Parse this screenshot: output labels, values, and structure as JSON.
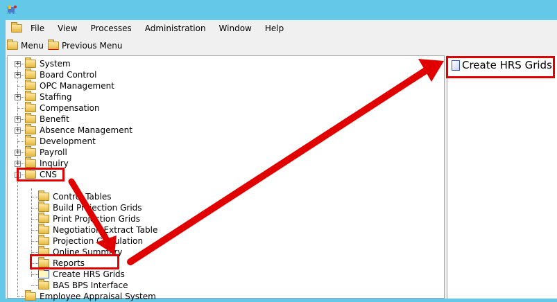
{
  "menubar": {
    "items": [
      "File",
      "View",
      "Processes",
      "Administration",
      "Window",
      "Help"
    ]
  },
  "toolbar": {
    "menu": "Menu",
    "previous_menu": "Previous Menu"
  },
  "tree": {
    "top": [
      {
        "label": "System",
        "expander": "+"
      },
      {
        "label": "Board Control",
        "expander": "+"
      },
      {
        "label": "OPC Management",
        "expander": ""
      },
      {
        "label": "Staffing",
        "expander": "+"
      },
      {
        "label": "Compensation",
        "expander": ""
      },
      {
        "label": "Benefit",
        "expander": "+"
      },
      {
        "label": "Absence Management",
        "expander": "+"
      },
      {
        "label": "Development",
        "expander": ""
      },
      {
        "label": "Payroll",
        "expander": "+"
      },
      {
        "label": "Inquiry",
        "expander": "+"
      },
      {
        "label": "CNS",
        "expander": "-"
      }
    ],
    "cns_children": [
      "Control Tables",
      "Build Projection Grids",
      "Print Projection Grids",
      "Negotiation Extract Table",
      "Projection Calculation",
      "Online Summary",
      "Reports",
      "Create HRS Grids",
      "BAS BPS Interface"
    ],
    "last": "Employee Appraisal System"
  },
  "right_panel": {
    "item": "Create HRS Grids"
  },
  "colors": {
    "highlight": "#e00000",
    "titlebar": "#64c8e8"
  }
}
